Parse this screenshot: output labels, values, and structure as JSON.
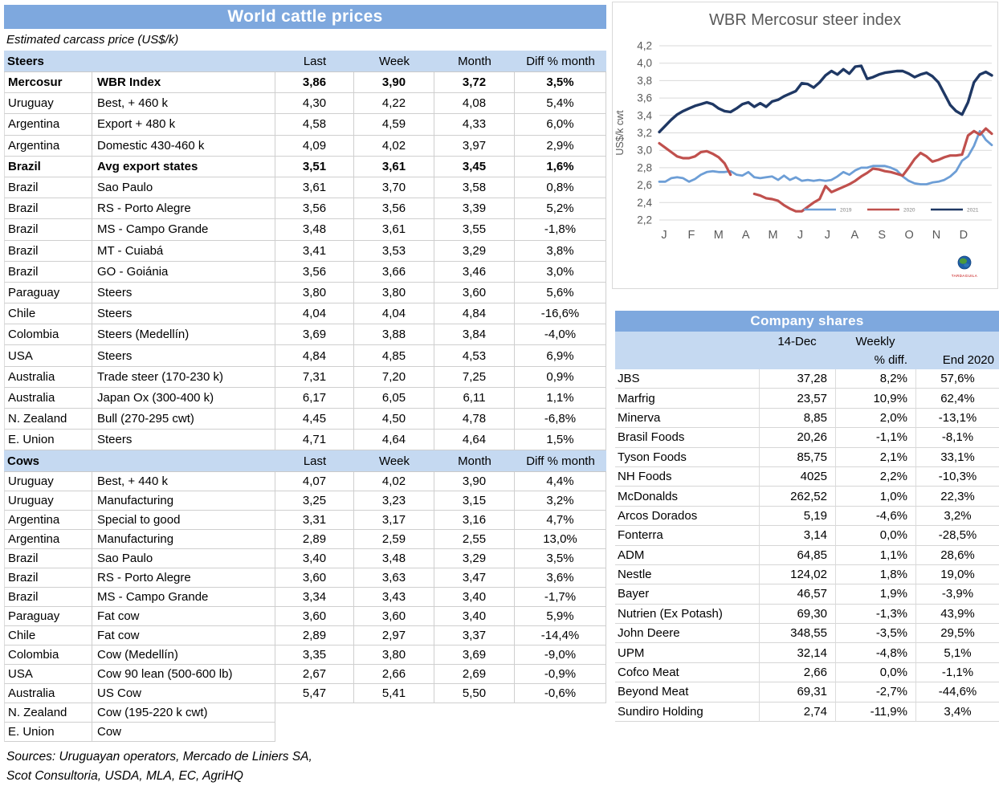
{
  "left_table": {
    "title": "World cattle prices",
    "subtitle": "Estimated carcass price (US$/k)",
    "columns": [
      "Last",
      "Week",
      "Month",
      "Diff % month"
    ],
    "sections": [
      {
        "name": "Steers",
        "rows": [
          {
            "country": "Mercosur",
            "desc": "WBR Index",
            "last": "3,86",
            "week": "3,90",
            "month": "3,72",
            "diff": "3,5%",
            "bold": true
          },
          {
            "country": "Uruguay",
            "desc": "Best, + 460 k",
            "last": "4,30",
            "week": "4,22",
            "month": "4,08",
            "diff": "5,4%"
          },
          {
            "country": "Argentina",
            "desc": "Export + 480 k",
            "last": "4,58",
            "week": "4,59",
            "month": "4,33",
            "diff": "6,0%"
          },
          {
            "country": "Argentina",
            "desc": "Domestic 430-460 k",
            "last": "4,09",
            "week": "4,02",
            "month": "3,97",
            "diff": "2,9%"
          },
          {
            "country": "Brazil",
            "desc": "Avg export states",
            "last": "3,51",
            "week": "3,61",
            "month": "3,45",
            "diff": "1,6%",
            "bold": true
          },
          {
            "country": "Brazil",
            "desc": "Sao Paulo",
            "last": "3,61",
            "week": "3,70",
            "month": "3,58",
            "diff": "0,8%"
          },
          {
            "country": "Brazil",
            "desc": "RS - Porto Alegre",
            "last": "3,56",
            "week": "3,56",
            "month": "3,39",
            "diff": "5,2%"
          },
          {
            "country": "Brazil",
            "desc": "MS - Campo Grande",
            "last": "3,48",
            "week": "3,61",
            "month": "3,55",
            "diff": "-1,8%"
          },
          {
            "country": "Brazil",
            "desc": "MT - Cuiabá",
            "last": "3,41",
            "week": "3,53",
            "month": "3,29",
            "diff": "3,8%"
          },
          {
            "country": "Brazil",
            "desc": "GO - Goiánia",
            "last": "3,56",
            "week": "3,66",
            "month": "3,46",
            "diff": "3,0%"
          },
          {
            "country": "Paraguay",
            "desc": "Steers",
            "last": "3,80",
            "week": "3,80",
            "month": "3,60",
            "diff": "5,6%"
          },
          {
            "country": "Chile",
            "desc": "Steers",
            "last": "4,04",
            "week": "4,04",
            "month": "4,84",
            "diff": "-16,6%"
          },
          {
            "country": "Colombia",
            "desc": "Steers (Medellín)",
            "last": "3,69",
            "week": "3,88",
            "month": "3,84",
            "diff": "-4,0%"
          },
          {
            "country": "USA",
            "desc": "Steers",
            "last": "4,84",
            "week": "4,85",
            "month": "4,53",
            "diff": "6,9%"
          },
          {
            "country": "Australia",
            "desc": "Trade steer (170-230 k)",
            "last": "7,31",
            "week": "7,20",
            "month": "7,25",
            "diff": "0,9%"
          },
          {
            "country": "Australia",
            "desc": "Japan Ox (300-400 k)",
            "last": "6,17",
            "week": "6,05",
            "month": "6,11",
            "diff": "1,1%"
          },
          {
            "country": "N. Zealand",
            "desc": "Bull (270-295 cwt)",
            "last": "4,45",
            "week": "4,50",
            "month": "4,78",
            "diff": "-6,8%"
          },
          {
            "country": "E. Union",
            "desc": "Steers",
            "last": "4,71",
            "week": "4,64",
            "month": "4,64",
            "diff": "1,5%"
          }
        ]
      },
      {
        "name": "Cows",
        "rows": [
          {
            "country": "Uruguay",
            "desc": "Best, + 440 k",
            "last": "4,07",
            "week": "4,02",
            "month": "3,90",
            "diff": "4,4%"
          },
          {
            "country": "Uruguay",
            "desc": "Manufacturing",
            "last": "3,25",
            "week": "3,23",
            "month": "3,15",
            "diff": "3,2%"
          },
          {
            "country": "Argentina",
            "desc": "Special to good",
            "last": "3,31",
            "week": "3,17",
            "month": "3,16",
            "diff": "4,7%"
          },
          {
            "country": "Argentina",
            "desc": "Manufacturing",
            "last": "2,89",
            "week": "2,59",
            "month": "2,55",
            "diff": "13,0%"
          },
          {
            "country": "Brazil",
            "desc": "Sao Paulo",
            "last": "3,40",
            "week": "3,48",
            "month": "3,29",
            "diff": "3,5%"
          },
          {
            "country": "Brazil",
            "desc": "RS - Porto Alegre",
            "last": "3,60",
            "week": "3,63",
            "month": "3,47",
            "diff": "3,6%"
          },
          {
            "country": "Brazil",
            "desc": "MS - Campo Grande",
            "last": "3,34",
            "week": "3,43",
            "month": "3,40",
            "diff": "-1,7%"
          },
          {
            "country": "Paraguay",
            "desc": "Fat cow",
            "last": "3,60",
            "week": "3,60",
            "month": "3,40",
            "diff": "5,9%"
          },
          {
            "country": "Chile",
            "desc": "Fat cow",
            "last": "2,89",
            "week": "2,97",
            "month": "3,37",
            "diff": "-14,4%"
          },
          {
            "country": "Colombia",
            "desc": "Cow (Medellín)",
            "last": "3,35",
            "week": "3,80",
            "month": "3,69",
            "diff": "-9,0%"
          },
          {
            "country": "USA",
            "desc": "Cow 90 lean (500-600 lb)",
            "last": "2,67",
            "week": "2,66",
            "month": "2,69",
            "diff": "-0,9%"
          },
          {
            "country": "Australia",
            "desc": "US Cow",
            "last": "5,47",
            "week": "5,41",
            "month": "5,50",
            "diff": "-0,6%"
          },
          {
            "country": "N. Zealand",
            "desc": "Cow (195-220 k cwt)",
            "last": "",
            "week": "",
            "month": "",
            "diff": "",
            "partial": true
          },
          {
            "country": "E. Union",
            "desc": "Cow",
            "last": "",
            "week": "",
            "month": "",
            "diff": "",
            "partial": true
          }
        ]
      }
    ],
    "sources_line1": "Sources: Uruguayan operators, Mercado de Liniers SA,",
    "sources_line2": "Scot Consultoria, USDA, MLA, EC, AgriHQ"
  },
  "chart_data": {
    "type": "line",
    "title": "WBR Mercosur steer index",
    "ylabel": "US$/k cwt",
    "ylim": [
      2.2,
      4.2
    ],
    "ytick_step": 0.2,
    "x_tick_labels": [
      "J",
      "F",
      "M",
      "A",
      "M",
      "J",
      "J",
      "A",
      "S",
      "O",
      "N",
      "D"
    ],
    "grid": true,
    "legend_position": "inside-bottom-right",
    "logo_label": "TARDAGUILA",
    "series": [
      {
        "name": "2019",
        "color": "#6D9ED6",
        "width": 2.8,
        "values": [
          2.64,
          2.64,
          2.68,
          2.69,
          2.68,
          2.64,
          2.67,
          2.72,
          2.75,
          2.76,
          2.75,
          2.75,
          2.76,
          2.72,
          2.71,
          2.75,
          2.69,
          2.68,
          2.69,
          2.7,
          2.66,
          2.71,
          2.66,
          2.69,
          2.65,
          2.66,
          2.65,
          2.66,
          2.65,
          2.66,
          2.7,
          2.75,
          2.72,
          2.77,
          2.8,
          2.8,
          2.82,
          2.82,
          2.82,
          2.8,
          2.77,
          2.7,
          2.65,
          2.62,
          2.61,
          2.61,
          2.63,
          2.64,
          2.66,
          2.7,
          2.76,
          2.88,
          2.93,
          3.05,
          3.22,
          3.12,
          3.06
        ]
      },
      {
        "name": "2020",
        "color": "#C0504D",
        "width": 3.2,
        "values": [
          3.08,
          3.03,
          2.98,
          2.93,
          2.91,
          2.91,
          2.93,
          2.98,
          2.99,
          2.96,
          2.92,
          2.85,
          2.72,
          null,
          null,
          null,
          2.5,
          2.48,
          2.45,
          2.44,
          2.42,
          2.37,
          2.33,
          2.3,
          2.3,
          2.35,
          2.4,
          2.44,
          2.59,
          2.52,
          2.55,
          2.58,
          2.61,
          2.65,
          2.7,
          2.74,
          2.79,
          2.78,
          2.76,
          2.75,
          2.73,
          2.71,
          2.8,
          2.9,
          2.97,
          2.93,
          2.87,
          2.89,
          2.92,
          2.94,
          2.94,
          2.95,
          3.17,
          3.22,
          3.18,
          3.25,
          3.19
        ]
      },
      {
        "name": "2021",
        "color": "#1F3864",
        "width": 3.4,
        "values": [
          3.21,
          3.28,
          3.35,
          3.41,
          3.45,
          3.48,
          3.51,
          3.53,
          3.55,
          3.53,
          3.48,
          3.45,
          3.44,
          3.48,
          3.53,
          3.55,
          3.5,
          3.54,
          3.5,
          3.56,
          3.58,
          3.62,
          3.65,
          3.68,
          3.77,
          3.76,
          3.72,
          3.78,
          3.86,
          3.91,
          3.87,
          3.93,
          3.88,
          3.96,
          3.97,
          3.82,
          3.84,
          3.87,
          3.89,
          3.9,
          3.91,
          3.91,
          3.88,
          3.84,
          3.87,
          3.89,
          3.85,
          3.78,
          3.65,
          3.52,
          3.45,
          3.41,
          3.55,
          3.78,
          3.87,
          3.9,
          3.86
        ]
      }
    ]
  },
  "company_table": {
    "title": "Company shares",
    "col_date": "14-Dec",
    "col_weekly_line1": "Weekly",
    "col_weekly_line2": "% diff.",
    "col_end": "End 2020",
    "rows": [
      {
        "name": "JBS",
        "price": "37,28",
        "weekly": "8,2%",
        "end2020": "57,6%"
      },
      {
        "name": "Marfrig",
        "price": "23,57",
        "weekly": "10,9%",
        "end2020": "62,4%"
      },
      {
        "name": "Minerva",
        "price": "8,85",
        "weekly": "2,0%",
        "end2020": "-13,1%"
      },
      {
        "name": "Brasil Foods",
        "price": "20,26",
        "weekly": "-1,1%",
        "end2020": "-8,1%"
      },
      {
        "name": "Tyson Foods",
        "price": "85,75",
        "weekly": "2,1%",
        "end2020": "33,1%"
      },
      {
        "name": "NH Foods",
        "price": "4025",
        "weekly": "2,2%",
        "end2020": "-10,3%"
      },
      {
        "name": "McDonalds",
        "price": "262,52",
        "weekly": "1,0%",
        "end2020": "22,3%"
      },
      {
        "name": "Arcos Dorados",
        "price": "5,19",
        "weekly": "-4,6%",
        "end2020": "3,2%"
      },
      {
        "name": "Fonterra",
        "price": "3,14",
        "weekly": "0,0%",
        "end2020": "-28,5%"
      },
      {
        "name": "ADM",
        "price": "64,85",
        "weekly": "1,1%",
        "end2020": "28,6%"
      },
      {
        "name": "Nestle",
        "price": "124,02",
        "weekly": "1,8%",
        "end2020": "19,0%"
      },
      {
        "name": "Bayer",
        "price": "46,57",
        "weekly": "1,9%",
        "end2020": "-3,9%"
      },
      {
        "name": "Nutrien (Ex Potash)",
        "price": "69,30",
        "weekly": "-1,3%",
        "end2020": "43,9%"
      },
      {
        "name": "John Deere",
        "price": "348,55",
        "weekly": "-3,5%",
        "end2020": "29,5%"
      },
      {
        "name": "UPM",
        "price": "32,14",
        "weekly": "-4,8%",
        "end2020": "5,1%"
      },
      {
        "name": "Cofco Meat",
        "price": "2,66",
        "weekly": "0,0%",
        "end2020": "-1,1%"
      },
      {
        "name": "Beyond Meat",
        "price": "69,31",
        "weekly": "-2,7%",
        "end2020": "-44,6%"
      },
      {
        "name": "Sundiro Holding",
        "price": "2,74",
        "weekly": "-11,9%",
        "end2020": "3,4%"
      }
    ]
  },
  "colors": {
    "band_blue": "#7EA8DE",
    "section_blue": "#C5D9F1",
    "axis_text": "#595959",
    "gridline": "#D9D9D9"
  }
}
